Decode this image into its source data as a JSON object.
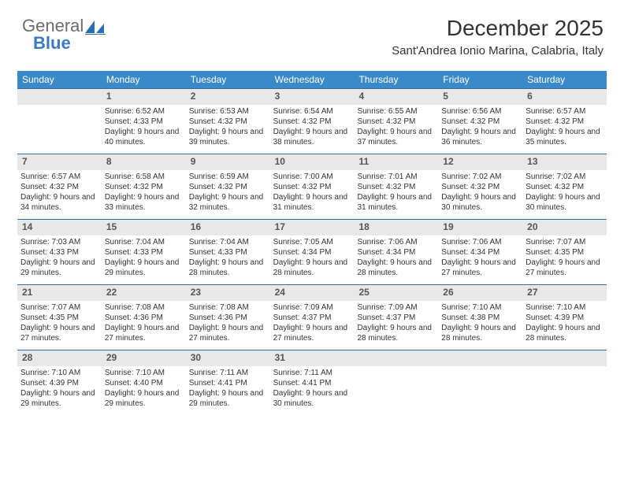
{
  "logo": {
    "part1": "General",
    "part2": "Blue"
  },
  "header": {
    "month_title": "December 2025",
    "location": "Sant'Andrea Ionio Marina, Calabria, Italy"
  },
  "colors": {
    "header_bg": "#3a89c9",
    "header_text": "#ffffff",
    "week_border": "#2f6da3",
    "daynum_bg": "#e8e8e8",
    "daynum_text": "#555555",
    "body_text": "#333333"
  },
  "day_names": [
    "Sunday",
    "Monday",
    "Tuesday",
    "Wednesday",
    "Thursday",
    "Friday",
    "Saturday"
  ],
  "weeks": [
    [
      {
        "num": "",
        "sunrise": "",
        "sunset": "",
        "daylight": ""
      },
      {
        "num": "1",
        "sunrise": "Sunrise: 6:52 AM",
        "sunset": "Sunset: 4:33 PM",
        "daylight": "Daylight: 9 hours and 40 minutes."
      },
      {
        "num": "2",
        "sunrise": "Sunrise: 6:53 AM",
        "sunset": "Sunset: 4:32 PM",
        "daylight": "Daylight: 9 hours and 39 minutes."
      },
      {
        "num": "3",
        "sunrise": "Sunrise: 6:54 AM",
        "sunset": "Sunset: 4:32 PM",
        "daylight": "Daylight: 9 hours and 38 minutes."
      },
      {
        "num": "4",
        "sunrise": "Sunrise: 6:55 AM",
        "sunset": "Sunset: 4:32 PM",
        "daylight": "Daylight: 9 hours and 37 minutes."
      },
      {
        "num": "5",
        "sunrise": "Sunrise: 6:56 AM",
        "sunset": "Sunset: 4:32 PM",
        "daylight": "Daylight: 9 hours and 36 minutes."
      },
      {
        "num": "6",
        "sunrise": "Sunrise: 6:57 AM",
        "sunset": "Sunset: 4:32 PM",
        "daylight": "Daylight: 9 hours and 35 minutes."
      }
    ],
    [
      {
        "num": "7",
        "sunrise": "Sunrise: 6:57 AM",
        "sunset": "Sunset: 4:32 PM",
        "daylight": "Daylight: 9 hours and 34 minutes."
      },
      {
        "num": "8",
        "sunrise": "Sunrise: 6:58 AM",
        "sunset": "Sunset: 4:32 PM",
        "daylight": "Daylight: 9 hours and 33 minutes."
      },
      {
        "num": "9",
        "sunrise": "Sunrise: 6:59 AM",
        "sunset": "Sunset: 4:32 PM",
        "daylight": "Daylight: 9 hours and 32 minutes."
      },
      {
        "num": "10",
        "sunrise": "Sunrise: 7:00 AM",
        "sunset": "Sunset: 4:32 PM",
        "daylight": "Daylight: 9 hours and 31 minutes."
      },
      {
        "num": "11",
        "sunrise": "Sunrise: 7:01 AM",
        "sunset": "Sunset: 4:32 PM",
        "daylight": "Daylight: 9 hours and 31 minutes."
      },
      {
        "num": "12",
        "sunrise": "Sunrise: 7:02 AM",
        "sunset": "Sunset: 4:32 PM",
        "daylight": "Daylight: 9 hours and 30 minutes."
      },
      {
        "num": "13",
        "sunrise": "Sunrise: 7:02 AM",
        "sunset": "Sunset: 4:32 PM",
        "daylight": "Daylight: 9 hours and 30 minutes."
      }
    ],
    [
      {
        "num": "14",
        "sunrise": "Sunrise: 7:03 AM",
        "sunset": "Sunset: 4:33 PM",
        "daylight": "Daylight: 9 hours and 29 minutes."
      },
      {
        "num": "15",
        "sunrise": "Sunrise: 7:04 AM",
        "sunset": "Sunset: 4:33 PM",
        "daylight": "Daylight: 9 hours and 29 minutes."
      },
      {
        "num": "16",
        "sunrise": "Sunrise: 7:04 AM",
        "sunset": "Sunset: 4:33 PM",
        "daylight": "Daylight: 9 hours and 28 minutes."
      },
      {
        "num": "17",
        "sunrise": "Sunrise: 7:05 AM",
        "sunset": "Sunset: 4:34 PM",
        "daylight": "Daylight: 9 hours and 28 minutes."
      },
      {
        "num": "18",
        "sunrise": "Sunrise: 7:06 AM",
        "sunset": "Sunset: 4:34 PM",
        "daylight": "Daylight: 9 hours and 28 minutes."
      },
      {
        "num": "19",
        "sunrise": "Sunrise: 7:06 AM",
        "sunset": "Sunset: 4:34 PM",
        "daylight": "Daylight: 9 hours and 27 minutes."
      },
      {
        "num": "20",
        "sunrise": "Sunrise: 7:07 AM",
        "sunset": "Sunset: 4:35 PM",
        "daylight": "Daylight: 9 hours and 27 minutes."
      }
    ],
    [
      {
        "num": "21",
        "sunrise": "Sunrise: 7:07 AM",
        "sunset": "Sunset: 4:35 PM",
        "daylight": "Daylight: 9 hours and 27 minutes."
      },
      {
        "num": "22",
        "sunrise": "Sunrise: 7:08 AM",
        "sunset": "Sunset: 4:36 PM",
        "daylight": "Daylight: 9 hours and 27 minutes."
      },
      {
        "num": "23",
        "sunrise": "Sunrise: 7:08 AM",
        "sunset": "Sunset: 4:36 PM",
        "daylight": "Daylight: 9 hours and 27 minutes."
      },
      {
        "num": "24",
        "sunrise": "Sunrise: 7:09 AM",
        "sunset": "Sunset: 4:37 PM",
        "daylight": "Daylight: 9 hours and 27 minutes."
      },
      {
        "num": "25",
        "sunrise": "Sunrise: 7:09 AM",
        "sunset": "Sunset: 4:37 PM",
        "daylight": "Daylight: 9 hours and 28 minutes."
      },
      {
        "num": "26",
        "sunrise": "Sunrise: 7:10 AM",
        "sunset": "Sunset: 4:38 PM",
        "daylight": "Daylight: 9 hours and 28 minutes."
      },
      {
        "num": "27",
        "sunrise": "Sunrise: 7:10 AM",
        "sunset": "Sunset: 4:39 PM",
        "daylight": "Daylight: 9 hours and 28 minutes."
      }
    ],
    [
      {
        "num": "28",
        "sunrise": "Sunrise: 7:10 AM",
        "sunset": "Sunset: 4:39 PM",
        "daylight": "Daylight: 9 hours and 29 minutes."
      },
      {
        "num": "29",
        "sunrise": "Sunrise: 7:10 AM",
        "sunset": "Sunset: 4:40 PM",
        "daylight": "Daylight: 9 hours and 29 minutes."
      },
      {
        "num": "30",
        "sunrise": "Sunrise: 7:11 AM",
        "sunset": "Sunset: 4:41 PM",
        "daylight": "Daylight: 9 hours and 29 minutes."
      },
      {
        "num": "31",
        "sunrise": "Sunrise: 7:11 AM",
        "sunset": "Sunset: 4:41 PM",
        "daylight": "Daylight: 9 hours and 30 minutes."
      },
      {
        "num": "",
        "sunrise": "",
        "sunset": "",
        "daylight": ""
      },
      {
        "num": "",
        "sunrise": "",
        "sunset": "",
        "daylight": ""
      },
      {
        "num": "",
        "sunrise": "",
        "sunset": "",
        "daylight": ""
      }
    ]
  ]
}
